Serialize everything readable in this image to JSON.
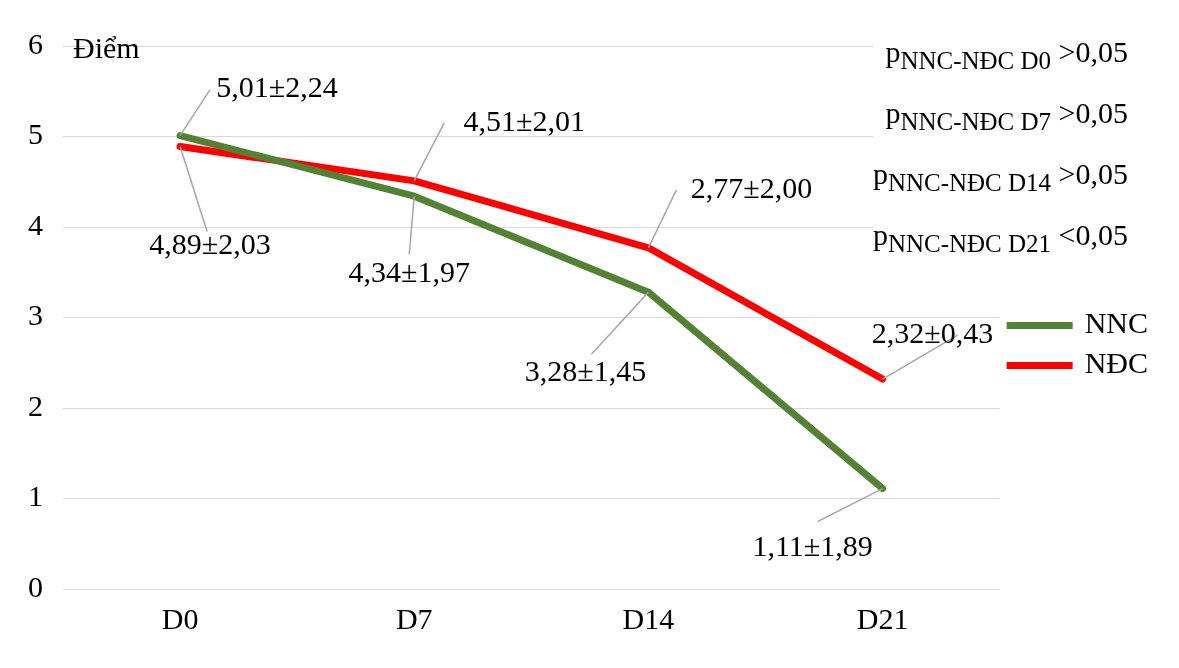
{
  "chart_data": {
    "type": "line",
    "ylabel": "Điểm",
    "categories": [
      "D0",
      "D7",
      "D14",
      "D21"
    ],
    "series": [
      {
        "name": "NNC",
        "color": "#548235",
        "values": [
          5.01,
          4.34,
          3.28,
          1.11
        ]
      },
      {
        "name": "NĐC",
        "color": "#ff0000",
        "values": [
          4.89,
          4.51,
          3.77,
          2.32
        ]
      }
    ],
    "ylim": [
      0,
      6
    ],
    "yticks": [
      0,
      1,
      2,
      3,
      4,
      5,
      6
    ],
    "grid": "y",
    "legend": "right",
    "marker": "none",
    "line_style": "solid",
    "annotations": [
      {
        "text": "5,01±2,24",
        "x": "D0",
        "y": 5.01
      },
      {
        "text": "4,89±2,03",
        "x": "D0",
        "y": 4.89
      },
      {
        "text": "4,51±2,01",
        "x": "D7",
        "y": 4.51
      },
      {
        "text": "4,34±1,97",
        "x": "D7",
        "y": 4.34
      },
      {
        "text": "2,77±2,00",
        "x": "D14",
        "y": 3.77
      },
      {
        "text": "3,28±1,45",
        "x": "D14",
        "y": 3.28
      },
      {
        "text": "2,32±0,43",
        "x": "D21",
        "y": 2.32
      },
      {
        "text": "1,11±1,89",
        "x": "D21",
        "y": 1.11
      },
      "p$_{NNC-NĐC D0}$ >0,05",
      "p$_{NNC-NĐC D7}$ >0,05",
      "p$_{NNC-NĐC D14}$ >0,05",
      "p$_{NNC-NĐC D21}$ <0,05"
    ]
  }
}
